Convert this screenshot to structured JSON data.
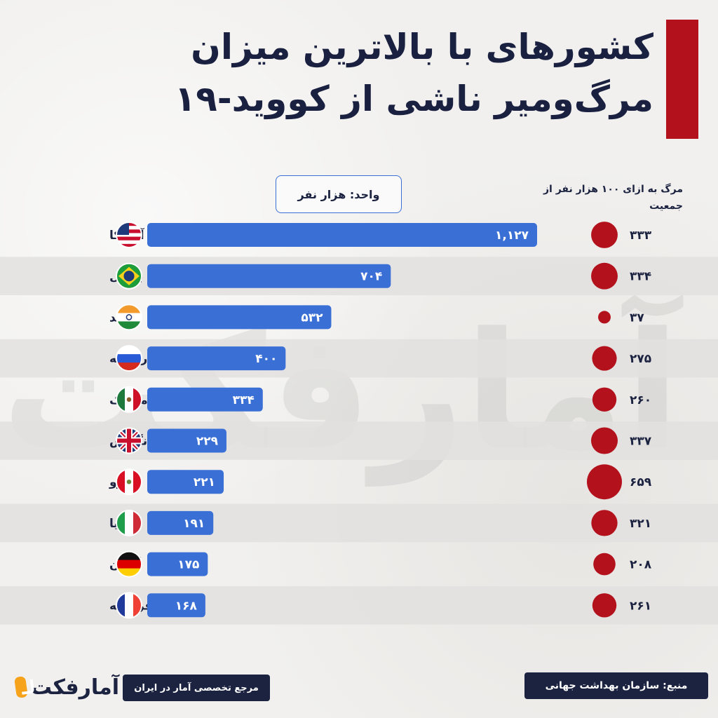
{
  "title": "کشورهای با بالاترین میزان مرگ‌ومیر ناشی از کووید-۱۹",
  "unit_label": "واحد: هزار نفر",
  "rate_header": "مرگ به ازای ۱۰۰ هزار نفر از جمعیت",
  "watermark": "آمارفکت",
  "footer": {
    "brand_name": "آمارفکت",
    "tagline": "مرجع تخصصی آمار در ایران",
    "source": "منبع: سازمان بهداشت جهانی"
  },
  "colors": {
    "bar": "#3a6fd6",
    "dot": "#b3121c",
    "title_bar": "#b3121c",
    "band": "#e2e1df",
    "text": "#1b2340"
  },
  "chart_data": {
    "type": "bar",
    "orientation": "horizontal",
    "categories": [
      "آمریکا",
      "برزیل",
      "هند",
      "روسیه",
      "مکزیک",
      "انگلیس",
      "پرو",
      "ایتالیا",
      "آلمان",
      "فرانسه"
    ],
    "flags": [
      "flag-us-icon",
      "flag-br-icon",
      "flag-in-icon",
      "flag-ru-icon",
      "flag-mx-icon",
      "flag-gb-icon",
      "flag-pe-icon",
      "flag-it-icon",
      "flag-de-icon",
      "flag-fr-icon"
    ],
    "series": [
      {
        "values": [
          1127,
          704,
          532,
          400,
          334,
          229,
          221,
          191,
          175,
          168
        ],
        "labels": [
          "۱,۱۲۷",
          "۷۰۴",
          "۵۳۲",
          "۴۰۰",
          "۳۳۴",
          "۲۲۹",
          "۲۲۱",
          "۱۹۱",
          "۱۷۵",
          "۱۶۸"
        ]
      },
      {
        "values": [
          333,
          334,
          37,
          275,
          260,
          337,
          659,
          321,
          208,
          261
        ],
        "labels": [
          "۳۳۳",
          "۳۳۴",
          "۳۷",
          "۲۷۵",
          "۲۶۰",
          "۳۳۷",
          "۶۵۹",
          "۳۲۱",
          "۲۰۸",
          "۲۶۱"
        ]
      }
    ],
    "xlim": [
      0,
      1127
    ],
    "grid": false,
    "legend": "none"
  }
}
